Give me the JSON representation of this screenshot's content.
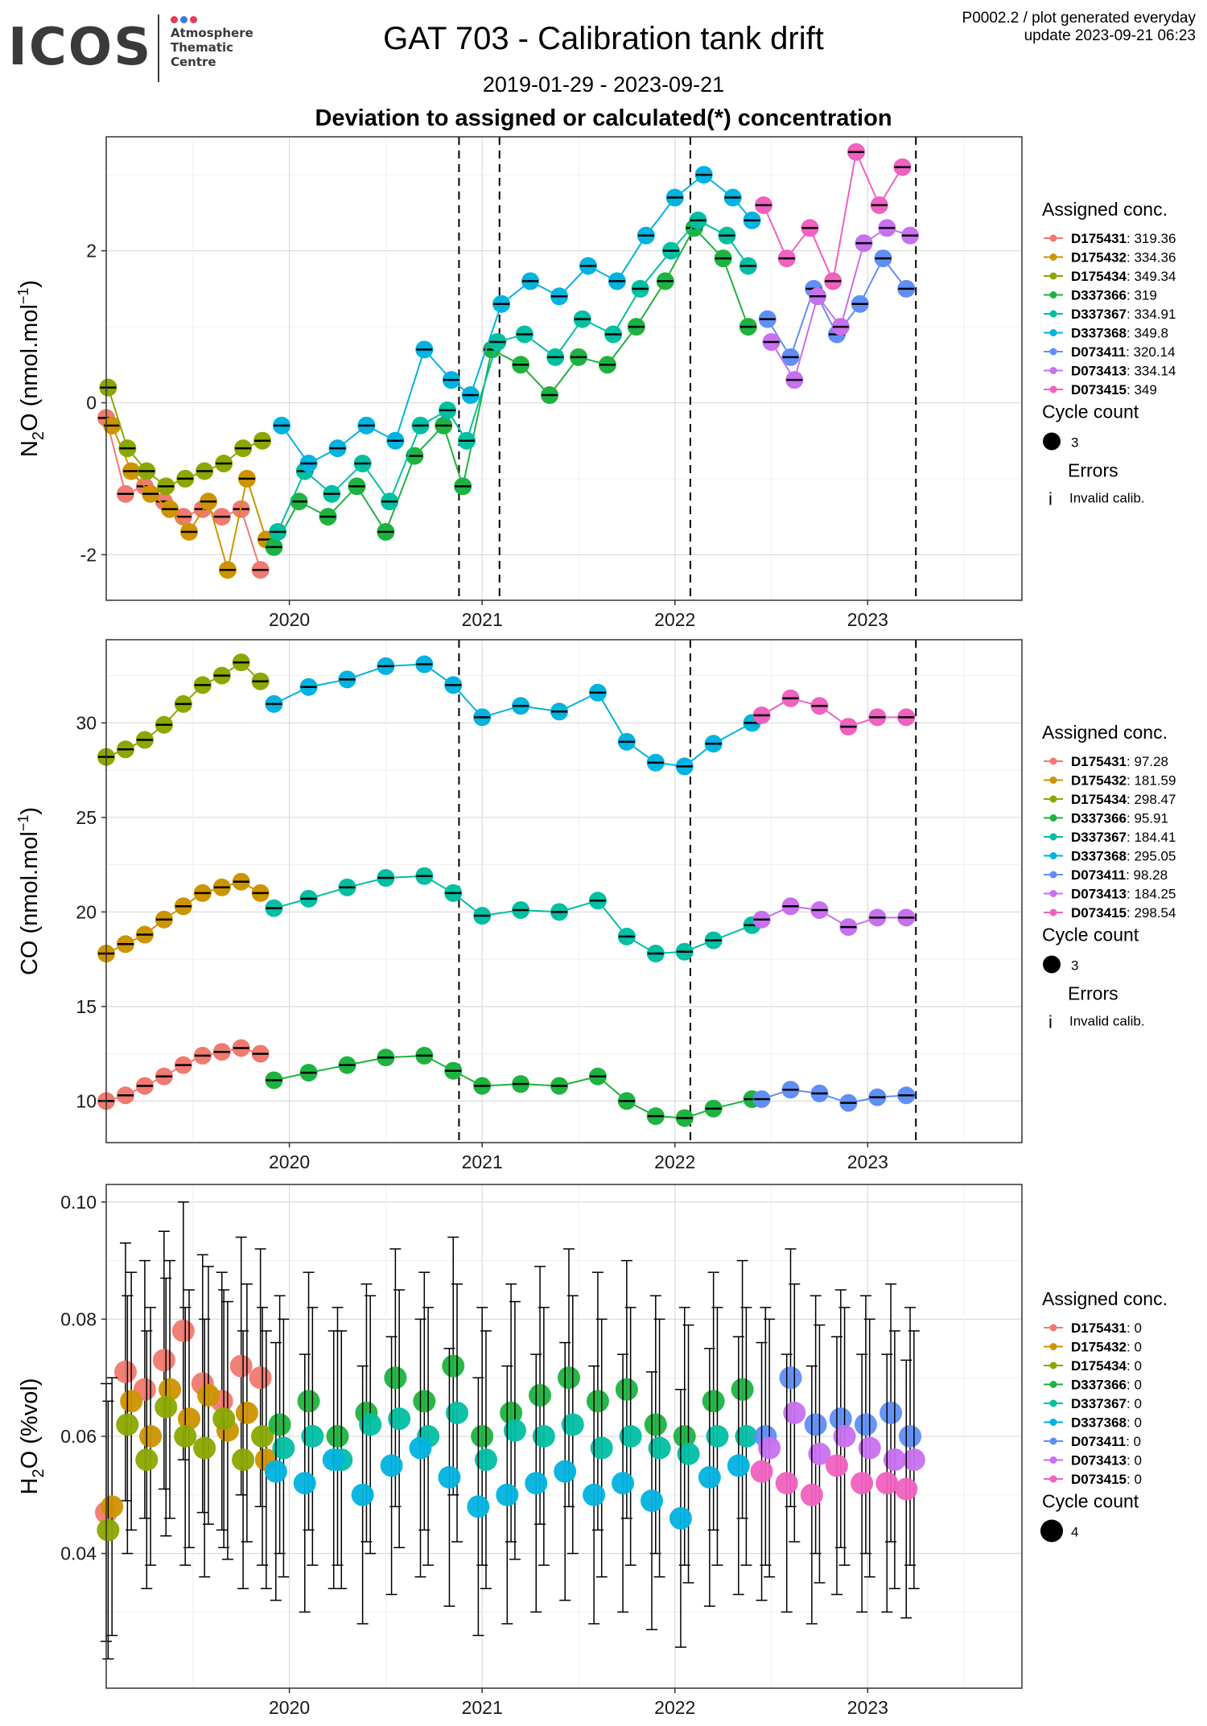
{
  "header": {
    "logo_text": "ICOS",
    "logo_lines": [
      "Atmosphere",
      "Thematic",
      "Centre"
    ],
    "logo_dot_colors": [
      "#e63a5c",
      "#3a7be0",
      "#e63a5c"
    ],
    "title": "GAT 703 - Calibration tank drift",
    "date_range": "2019-01-29 - 2023-09-21",
    "subtitle": "Deviation to assigned or calculated(*) concentration",
    "top_right_line1": "P0002.2 / plot generated everyday",
    "top_right_line2": "update  2023-09-21 06:23"
  },
  "legend_common": {
    "assigned_title": "Assigned conc.",
    "cycle_title": "Cycle count",
    "errors_title": "Errors",
    "invalid_label": "Invalid calib.",
    "invalid_symbol": "i"
  },
  "tank_colors": {
    "D175431": "#f07a70",
    "D175432": "#cd9400",
    "D175434": "#8aa800",
    "D337366": "#1db33f",
    "D337367": "#00bfa3",
    "D337368": "#00b3e0",
    "D073411": "#5f8ff6",
    "D073413": "#c870f0",
    "D073415": "#f061c0"
  },
  "chart_data": [
    {
      "type": "scatter",
      "panel": "N2O",
      "ylabel": "N2O (nmol.mol-1)",
      "ylabel_parts": [
        "N",
        "2",
        "O (nmol.mol",
        "−1",
        ")"
      ],
      "ylim": [
        -2.6,
        3.5
      ],
      "yticks": [
        -2,
        0,
        2
      ],
      "ytick_labels": [
        "-2",
        "0",
        "2"
      ],
      "xlim": [
        2019.05,
        2023.8
      ],
      "xticks": [
        2020,
        2021,
        2022,
        2023
      ],
      "xtick_labels": [
        "2020",
        "2021",
        "2022",
        "2023"
      ],
      "vlines": [
        2020.88,
        2021.09,
        2022.08,
        2023.25
      ],
      "grid": true,
      "legend": "right",
      "assigned": [
        {
          "tank": "D175431",
          "value": "319.36"
        },
        {
          "tank": "D175432",
          "value": "334.36"
        },
        {
          "tank": "D175434",
          "value": "349.34"
        },
        {
          "tank": "D337366",
          "value": "319"
        },
        {
          "tank": "D337367",
          "value": "334.91"
        },
        {
          "tank": "D337368",
          "value": "349.8"
        },
        {
          "tank": "D073411",
          "value": "320.14"
        },
        {
          "tank": "D073413",
          "value": "334.14"
        },
        {
          "tank": "D073415",
          "value": "349"
        }
      ],
      "cycle_count": "3",
      "series": [
        {
          "name": "D175431",
          "x": [
            2019.05,
            2019.15,
            2019.25,
            2019.35,
            2019.45,
            2019.55,
            2019.65,
            2019.75,
            2019.85
          ],
          "y": [
            -0.2,
            -1.2,
            -1.1,
            -1.3,
            -1.5,
            -1.4,
            -1.5,
            -1.4,
            -2.2
          ]
        },
        {
          "name": "D175432",
          "x": [
            2019.08,
            2019.18,
            2019.28,
            2019.38,
            2019.48,
            2019.58,
            2019.68,
            2019.78,
            2019.88
          ],
          "y": [
            -0.3,
            -0.9,
            -1.2,
            -1.4,
            -1.7,
            -1.3,
            -2.2,
            -1.0,
            -1.8
          ]
        },
        {
          "name": "D175434",
          "x": [
            2019.06,
            2019.16,
            2019.26,
            2019.36,
            2019.46,
            2019.56,
            2019.66,
            2019.76,
            2019.86
          ],
          "y": [
            0.2,
            -0.6,
            -0.9,
            -1.1,
            -1.0,
            -0.9,
            -0.8,
            -0.6,
            -0.5
          ]
        },
        {
          "name": "D337366",
          "x": [
            2019.92,
            2020.05,
            2020.2,
            2020.35,
            2020.5,
            2020.65,
            2020.8,
            2020.9,
            2021.05,
            2021.2,
            2021.35,
            2021.5,
            2021.65,
            2021.8,
            2021.95,
            2022.1,
            2022.25,
            2022.38
          ],
          "y": [
            -1.9,
            -1.3,
            -1.5,
            -1.1,
            -1.7,
            -0.7,
            -0.3,
            -1.1,
            0.7,
            0.5,
            0.1,
            0.6,
            0.5,
            1.0,
            1.6,
            2.3,
            1.9,
            1.0
          ]
        },
        {
          "name": "D337367",
          "x": [
            2019.94,
            2020.08,
            2020.22,
            2020.38,
            2020.52,
            2020.68,
            2020.82,
            2020.92,
            2021.08,
            2021.22,
            2021.38,
            2021.52,
            2021.68,
            2021.82,
            2021.98,
            2022.12,
            2022.27,
            2022.38
          ],
          "y": [
            -1.7,
            -0.9,
            -1.2,
            -0.8,
            -1.3,
            -0.3,
            -0.1,
            -0.5,
            0.8,
            0.9,
            0.6,
            1.1,
            0.9,
            1.5,
            2.0,
            2.4,
            2.2,
            1.8
          ]
        },
        {
          "name": "D337368",
          "x": [
            2019.96,
            2020.1,
            2020.25,
            2020.4,
            2020.55,
            2020.7,
            2020.84,
            2020.94,
            2021.1,
            2021.25,
            2021.4,
            2021.55,
            2021.7,
            2021.85,
            2022.0,
            2022.15,
            2022.3,
            2022.4
          ],
          "y": [
            -0.3,
            -0.8,
            -0.6,
            -0.3,
            -0.5,
            0.7,
            0.3,
            0.1,
            1.3,
            1.6,
            1.4,
            1.8,
            1.6,
            2.2,
            2.7,
            3.0,
            2.7,
            2.4
          ]
        },
        {
          "name": "D073411",
          "x": [
            2022.48,
            2022.6,
            2022.72,
            2022.84,
            2022.96,
            2023.08,
            2023.2
          ],
          "y": [
            1.1,
            0.6,
            1.5,
            0.9,
            1.3,
            1.9,
            1.5
          ]
        },
        {
          "name": "D073413",
          "x": [
            2022.5,
            2022.62,
            2022.74,
            2022.86,
            2022.98,
            2023.1,
            2023.22
          ],
          "y": [
            0.8,
            0.3,
            1.4,
            1.0,
            2.1,
            2.3,
            2.2
          ]
        },
        {
          "name": "D073415",
          "x": [
            2022.46,
            2022.58,
            2022.7,
            2022.82,
            2022.94,
            2023.06,
            2023.18
          ],
          "y": [
            2.6,
            1.9,
            2.3,
            1.6,
            3.3,
            2.6,
            3.1
          ]
        }
      ]
    },
    {
      "type": "scatter",
      "panel": "CO",
      "ylabel": "CO (nmol.mol-1)",
      "ylabel_parts": [
        "CO (nmol.mol",
        "−1",
        ")"
      ],
      "ylim": [
        7.8,
        34.4
      ],
      "yticks": [
        10,
        15,
        20,
        25,
        30
      ],
      "ytick_labels": [
        "10",
        "15",
        "20",
        "25",
        "30"
      ],
      "xlim": [
        2019.05,
        2023.8
      ],
      "xticks": [
        2020,
        2021,
        2022,
        2023
      ],
      "xtick_labels": [
        "2020",
        "2021",
        "2022",
        "2023"
      ],
      "vlines": [
        2020.88,
        2022.08,
        2023.25
      ],
      "grid": true,
      "legend": "right",
      "assigned": [
        {
          "tank": "D175431",
          "value": "97.28"
        },
        {
          "tank": "D175432",
          "value": "181.59"
        },
        {
          "tank": "D175434",
          "value": "298.47"
        },
        {
          "tank": "D337366",
          "value": "95.91"
        },
        {
          "tank": "D337367",
          "value": "184.41"
        },
        {
          "tank": "D337368",
          "value": "295.05"
        },
        {
          "tank": "D073411",
          "value": "98.28"
        },
        {
          "tank": "D073413",
          "value": "184.25"
        },
        {
          "tank": "D073415",
          "value": "298.54"
        }
      ],
      "cycle_count": "3",
      "series": [
        {
          "name": "D175431",
          "x": [
            2019.05,
            2019.15,
            2019.25,
            2019.35,
            2019.45,
            2019.55,
            2019.65,
            2019.75,
            2019.85
          ],
          "y": [
            10.0,
            10.3,
            10.8,
            11.3,
            11.9,
            12.4,
            12.6,
            12.8,
            12.5
          ]
        },
        {
          "name": "D175432",
          "x": [
            2019.05,
            2019.15,
            2019.25,
            2019.35,
            2019.45,
            2019.55,
            2019.65,
            2019.75,
            2019.85
          ],
          "y": [
            17.8,
            18.3,
            18.8,
            19.6,
            20.3,
            21.0,
            21.3,
            21.6,
            21.0
          ]
        },
        {
          "name": "D175434",
          "x": [
            2019.05,
            2019.15,
            2019.25,
            2019.35,
            2019.45,
            2019.55,
            2019.65,
            2019.75,
            2019.85
          ],
          "y": [
            28.2,
            28.6,
            29.1,
            29.9,
            31.0,
            32.0,
            32.5,
            33.2,
            32.2
          ]
        },
        {
          "name": "D337366",
          "x": [
            2019.92,
            2020.1,
            2020.3,
            2020.5,
            2020.7,
            2020.85,
            2021.0,
            2021.2,
            2021.4,
            2021.6,
            2021.75,
            2021.9,
            2022.05,
            2022.2,
            2022.4
          ],
          "y": [
            11.1,
            11.5,
            11.9,
            12.3,
            12.4,
            11.6,
            10.8,
            10.9,
            10.8,
            11.3,
            10.0,
            9.2,
            9.1,
            9.6,
            10.1
          ]
        },
        {
          "name": "D337367",
          "x": [
            2019.92,
            2020.1,
            2020.3,
            2020.5,
            2020.7,
            2020.85,
            2021.0,
            2021.2,
            2021.4,
            2021.6,
            2021.75,
            2021.9,
            2022.05,
            2022.2,
            2022.4
          ],
          "y": [
            20.2,
            20.7,
            21.3,
            21.8,
            21.9,
            21.0,
            19.8,
            20.1,
            20.0,
            20.6,
            18.7,
            17.8,
            17.9,
            18.5,
            19.3
          ]
        },
        {
          "name": "D337368",
          "x": [
            2019.92,
            2020.1,
            2020.3,
            2020.5,
            2020.7,
            2020.85,
            2021.0,
            2021.2,
            2021.4,
            2021.6,
            2021.75,
            2021.9,
            2022.05,
            2022.2,
            2022.4
          ],
          "y": [
            31.0,
            31.9,
            32.3,
            33.0,
            33.1,
            32.0,
            30.3,
            30.9,
            30.6,
            31.6,
            29.0,
            27.9,
            27.7,
            28.9,
            30.0
          ]
        },
        {
          "name": "D073411",
          "x": [
            2022.45,
            2022.6,
            2022.75,
            2022.9,
            2023.05,
            2023.2
          ],
          "y": [
            10.1,
            10.6,
            10.4,
            9.9,
            10.2,
            10.3
          ]
        },
        {
          "name": "D073413",
          "x": [
            2022.45,
            2022.6,
            2022.75,
            2022.9,
            2023.05,
            2023.2
          ],
          "y": [
            19.6,
            20.3,
            20.1,
            19.2,
            19.7,
            19.7
          ]
        },
        {
          "name": "D073415",
          "x": [
            2022.45,
            2022.6,
            2022.75,
            2022.9,
            2023.05,
            2023.2
          ],
          "y": [
            30.4,
            31.3,
            30.9,
            29.8,
            30.3,
            30.3
          ]
        }
      ]
    },
    {
      "type": "scatter",
      "panel": "H2O",
      "ylabel": "H2O (%vol)",
      "ylabel_parts": [
        "H",
        "2",
        "O (%vol)"
      ],
      "ylim": [
        0.017,
        0.103
      ],
      "yticks": [
        0.04,
        0.06,
        0.08,
        0.1
      ],
      "ytick_labels": [
        "0.04",
        "0.06",
        "0.08",
        "0.10"
      ],
      "xlim": [
        2019.05,
        2023.8
      ],
      "xticks": [
        2020,
        2021,
        2022,
        2023
      ],
      "xtick_labels": [
        "2020",
        "2021",
        "2022",
        "2023"
      ],
      "vlines": [],
      "grid": true,
      "legend": "right",
      "error_half_width": 0.022,
      "assigned": [
        {
          "tank": "D175431",
          "value": "0"
        },
        {
          "tank": "D175432",
          "value": "0"
        },
        {
          "tank": "D175434",
          "value": "0"
        },
        {
          "tank": "D337366",
          "value": "0"
        },
        {
          "tank": "D337367",
          "value": "0"
        },
        {
          "tank": "D337368",
          "value": "0"
        },
        {
          "tank": "D073411",
          "value": "0"
        },
        {
          "tank": "D073413",
          "value": "0"
        },
        {
          "tank": "D073415",
          "value": "0"
        }
      ],
      "cycle_count": "4",
      "series": [
        {
          "name": "D175431",
          "x": [
            2019.05,
            2019.15,
            2019.25,
            2019.35,
            2019.45,
            2019.55,
            2019.65,
            2019.75,
            2019.85
          ],
          "y": [
            0.047,
            0.071,
            0.068,
            0.073,
            0.078,
            0.069,
            0.066,
            0.072,
            0.07
          ]
        },
        {
          "name": "D175432",
          "x": [
            2019.08,
            2019.18,
            2019.28,
            2019.38,
            2019.48,
            2019.58,
            2019.68,
            2019.78,
            2019.88
          ],
          "y": [
            0.048,
            0.066,
            0.06,
            0.068,
            0.063,
            0.067,
            0.061,
            0.064,
            0.056
          ]
        },
        {
          "name": "D175434",
          "x": [
            2019.06,
            2019.16,
            2019.26,
            2019.36,
            2019.46,
            2019.56,
            2019.66,
            2019.76,
            2019.86
          ],
          "y": [
            0.044,
            0.062,
            0.056,
            0.065,
            0.06,
            0.058,
            0.063,
            0.056,
            0.06
          ]
        },
        {
          "name": "D337366",
          "x": [
            2019.95,
            2020.1,
            2020.25,
            2020.4,
            2020.55,
            2020.7,
            2020.85,
            2021.0,
            2021.15,
            2021.3,
            2021.45,
            2021.6,
            2021.75,
            2021.9,
            2022.05,
            2022.2,
            2022.35
          ],
          "y": [
            0.062,
            0.066,
            0.06,
            0.064,
            0.07,
            0.066,
            0.072,
            0.06,
            0.064,
            0.067,
            0.07,
            0.066,
            0.068,
            0.062,
            0.06,
            0.066,
            0.068
          ]
        },
        {
          "name": "D337367",
          "x": [
            2019.97,
            2020.12,
            2020.27,
            2020.42,
            2020.57,
            2020.72,
            2020.87,
            2021.02,
            2021.17,
            2021.32,
            2021.47,
            2021.62,
            2021.77,
            2021.92,
            2022.07,
            2022.22,
            2022.37
          ],
          "y": [
            0.058,
            0.06,
            0.056,
            0.062,
            0.063,
            0.06,
            0.064,
            0.056,
            0.061,
            0.06,
            0.062,
            0.058,
            0.06,
            0.058,
            0.057,
            0.06,
            0.06
          ]
        },
        {
          "name": "D337368",
          "x": [
            2019.93,
            2020.08,
            2020.23,
            2020.38,
            2020.53,
            2020.68,
            2020.83,
            2020.98,
            2021.13,
            2021.28,
            2021.43,
            2021.58,
            2021.73,
            2021.88,
            2022.03,
            2022.18,
            2022.33
          ],
          "y": [
            0.054,
            0.052,
            0.056,
            0.05,
            0.055,
            0.058,
            0.053,
            0.048,
            0.05,
            0.052,
            0.054,
            0.05,
            0.052,
            0.049,
            0.046,
            0.053,
            0.055
          ]
        },
        {
          "name": "D073411",
          "x": [
            2022.47,
            2022.6,
            2022.73,
            2022.86,
            2022.99,
            2023.12,
            2023.22
          ],
          "y": [
            0.06,
            0.07,
            0.062,
            0.063,
            0.062,
            0.064,
            0.06
          ]
        },
        {
          "name": "D073413",
          "x": [
            2022.49,
            2022.62,
            2022.75,
            2022.88,
            2023.01,
            2023.14,
            2023.24
          ],
          "y": [
            0.058,
            0.064,
            0.057,
            0.06,
            0.058,
            0.056,
            0.056
          ]
        },
        {
          "name": "D073415",
          "x": [
            2022.45,
            2022.58,
            2022.71,
            2022.84,
            2022.97,
            2023.1,
            2023.2
          ],
          "y": [
            0.054,
            0.052,
            0.05,
            0.055,
            0.052,
            0.052,
            0.051
          ]
        }
      ]
    }
  ]
}
